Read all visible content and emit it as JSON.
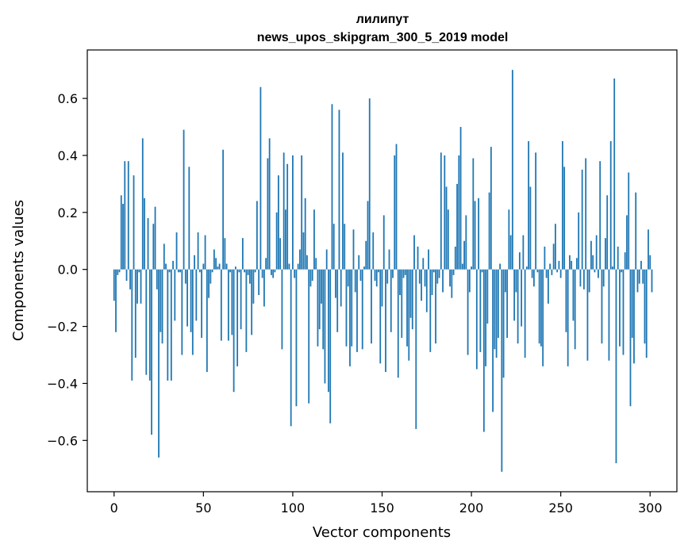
{
  "chart_data": {
    "type": "bar",
    "title": "лилипут",
    "subtitle": "news_upos_skipgram_300_5_2019 model",
    "xlabel": "Vector components",
    "ylabel": "Components values",
    "xlim": [
      -15,
      315
    ],
    "ylim": [
      -0.78,
      0.77
    ],
    "xticks": [
      0,
      50,
      100,
      150,
      200,
      250,
      300
    ],
    "xtick_labels": [
      "0",
      "50",
      "100",
      "150",
      "200",
      "250",
      "300"
    ],
    "yticks": [
      -0.6,
      -0.4,
      -0.2,
      0.0,
      0.2,
      0.4,
      0.6
    ],
    "ytick_labels": [
      "−0.6",
      "−0.4",
      "−0.2",
      "0.0",
      "0.2",
      "0.4",
      "0.6"
    ],
    "grid": false,
    "color": "#1f77b4",
    "values": [
      -0.11,
      -0.22,
      -0.02,
      -0.01,
      0.26,
      0.23,
      0.38,
      -0.04,
      0.38,
      -0.07,
      -0.39,
      0.33,
      -0.31,
      -0.12,
      -0.01,
      -0.12,
      0.46,
      0.25,
      -0.37,
      0.18,
      -0.39,
      -0.58,
      0.16,
      0.22,
      -0.07,
      -0.66,
      -0.22,
      -0.26,
      0.09,
      0.02,
      -0.39,
      -0.01,
      -0.39,
      0.03,
      -0.18,
      0.13,
      -0.01,
      -0.01,
      -0.3,
      0.49,
      -0.05,
      -0.2,
      0.36,
      -0.22,
      -0.3,
      0.05,
      -0.18,
      0.13,
      -0.01,
      -0.24,
      0.02,
      0.12,
      -0.36,
      -0.1,
      -0.05,
      -0.01,
      0.07,
      0.04,
      0.01,
      0.02,
      -0.25,
      0.42,
      0.11,
      0.02,
      -0.25,
      -0.01,
      -0.23,
      -0.43,
      0.01,
      -0.34,
      -0.01,
      -0.21,
      0.11,
      -0.01,
      -0.29,
      -0.02,
      -0.05,
      -0.23,
      -0.12,
      -0.01,
      0.24,
      -0.09,
      0.64,
      -0.03,
      -0.13,
      0.04,
      0.39,
      0.46,
      -0.02,
      -0.03,
      -0.01,
      0.2,
      0.33,
      0.11,
      -0.28,
      0.41,
      0.21,
      0.37,
      0.02,
      -0.55,
      0.4,
      -0.03,
      -0.48,
      0.02,
      0.07,
      0.4,
      0.13,
      0.25,
      0.05,
      -0.47,
      -0.06,
      -0.04,
      0.21,
      0.04,
      -0.27,
      -0.21,
      -0.12,
      -0.28,
      -0.4,
      0.07,
      -0.43,
      -0.54,
      0.58,
      0.16,
      -0.1,
      -0.22,
      0.56,
      -0.13,
      0.41,
      0.16,
      -0.27,
      -0.06,
      -0.34,
      -0.27,
      0.14,
      -0.08,
      -0.29,
      0.05,
      -0.04,
      -0.28,
      0.01,
      0.1,
      0.24,
      0.6,
      -0.26,
      0.13,
      -0.04,
      -0.06,
      -0.01,
      -0.33,
      -0.13,
      0.19,
      -0.36,
      -0.05,
      0.07,
      -0.22,
      -0.03,
      0.4,
      0.44,
      -0.38,
      -0.09,
      -0.24,
      -0.03,
      -0.02,
      -0.27,
      -0.32,
      -0.17,
      -0.21,
      0.12,
      -0.56,
      0.08,
      -0.05,
      -0.11,
      0.04,
      -0.06,
      -0.15,
      0.07,
      -0.29,
      -0.09,
      -0.01,
      -0.26,
      -0.05,
      -0.03,
      0.41,
      -0.08,
      0.4,
      0.29,
      0.21,
      -0.06,
      -0.1,
      -0.02,
      0.08,
      0.3,
      0.4,
      0.5,
      0.02,
      0.1,
      0.19,
      -0.3,
      -0.08,
      0.01,
      0.39,
      0.24,
      -0.35,
      0.25,
      -0.29,
      -0.01,
      -0.57,
      -0.34,
      -0.19,
      0.27,
      0.43,
      -0.5,
      -0.28,
      -0.31,
      -0.24,
      0.02,
      -0.71,
      -0.38,
      -0.08,
      -0.24,
      0.21,
      0.12,
      0.7,
      -0.18,
      -0.08,
      -0.26,
      0.06,
      -0.2,
      0.12,
      -0.31,
      0.01,
      0.45,
      0.29,
      -0.03,
      -0.06,
      0.41,
      -0.01,
      -0.26,
      -0.27,
      -0.34,
      0.08,
      -0.03,
      -0.12,
      0.02,
      -0.02,
      0.09,
      0.16,
      -0.01,
      0.03,
      -0.03,
      0.45,
      0.36,
      -0.22,
      -0.34,
      0.05,
      0.03,
      -0.18,
      -0.28,
      0.04,
      0.2,
      -0.06,
      0.35,
      -0.07,
      0.39,
      -0.32,
      -0.08,
      0.1,
      0.05,
      -0.01,
      0.12,
      -0.03,
      0.38,
      -0.26,
      -0.06,
      0.11,
      0.26,
      -0.32,
      0.45,
      0.01,
      0.67,
      -0.68,
      0.08,
      -0.27,
      -0.01,
      -0.3,
      0.06,
      0.19,
      0.34,
      -0.48,
      -0.24,
      -0.33,
      0.27,
      -0.08,
      -0.05,
      0.03,
      -0.05,
      -0.26,
      -0.31,
      0.14,
      0.05,
      -0.08
    ]
  }
}
